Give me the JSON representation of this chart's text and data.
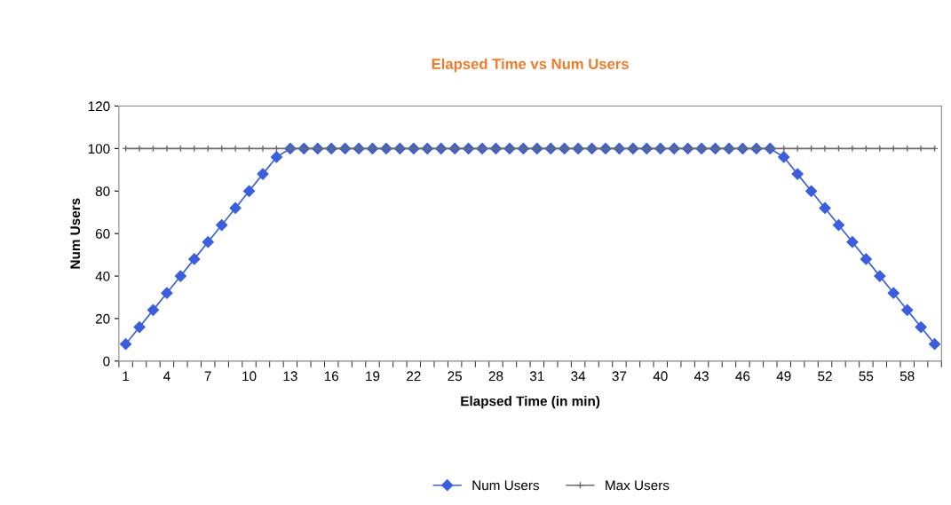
{
  "chart_data": {
    "type": "line",
    "title": "Elapsed Time vs Num Users",
    "xlabel": "Elapsed Time (in min)",
    "ylabel": "Num Users",
    "categories": [
      "1",
      null,
      null,
      "4",
      null,
      null,
      "7",
      null,
      null,
      "10",
      null,
      null,
      "13",
      null,
      null,
      "16",
      null,
      null,
      "19",
      null,
      null,
      "22",
      null,
      null,
      "25",
      null,
      null,
      "28",
      null,
      null,
      "31",
      null,
      null,
      "34",
      null,
      null,
      "37",
      null,
      null,
      "40",
      null,
      null,
      "43",
      null,
      null,
      "46",
      null,
      null,
      "49",
      null,
      null,
      "52",
      null,
      null,
      "55",
      null,
      null,
      "58",
      null,
      null
    ],
    "series": [
      {
        "name": "Num Users",
        "color": "#3a5ee0",
        "marker": "diamond",
        "values": [
          8,
          16,
          24,
          32,
          40,
          48,
          56,
          64,
          72,
          80,
          88,
          96,
          100,
          100,
          100,
          100,
          100,
          100,
          100,
          100,
          100,
          100,
          100,
          100,
          100,
          100,
          100,
          100,
          100,
          100,
          100,
          100,
          100,
          100,
          100,
          100,
          100,
          100,
          100,
          100,
          100,
          100,
          100,
          100,
          100,
          100,
          100,
          100,
          96,
          88,
          80,
          72,
          64,
          56,
          48,
          40,
          32,
          24,
          16,
          8
        ]
      },
      {
        "name": "Max Users",
        "color": "#6b6b6b",
        "marker": "cross",
        "values": [
          100,
          100,
          100,
          100,
          100,
          100,
          100,
          100,
          100,
          100,
          100,
          100,
          100,
          100,
          100,
          100,
          100,
          100,
          100,
          100,
          100,
          100,
          100,
          100,
          100,
          100,
          100,
          100,
          100,
          100,
          100,
          100,
          100,
          100,
          100,
          100,
          100,
          100,
          100,
          100,
          100,
          100,
          100,
          100,
          100,
          100,
          100,
          100,
          100,
          100,
          100,
          100,
          100,
          100,
          100,
          100,
          100,
          100,
          100,
          100
        ]
      }
    ],
    "ylim": [
      0,
      120
    ],
    "yticks": [
      0,
      20,
      40,
      60,
      80,
      100,
      120
    ],
    "grid": false,
    "legend": "bottom",
    "line_style": "solid"
  }
}
